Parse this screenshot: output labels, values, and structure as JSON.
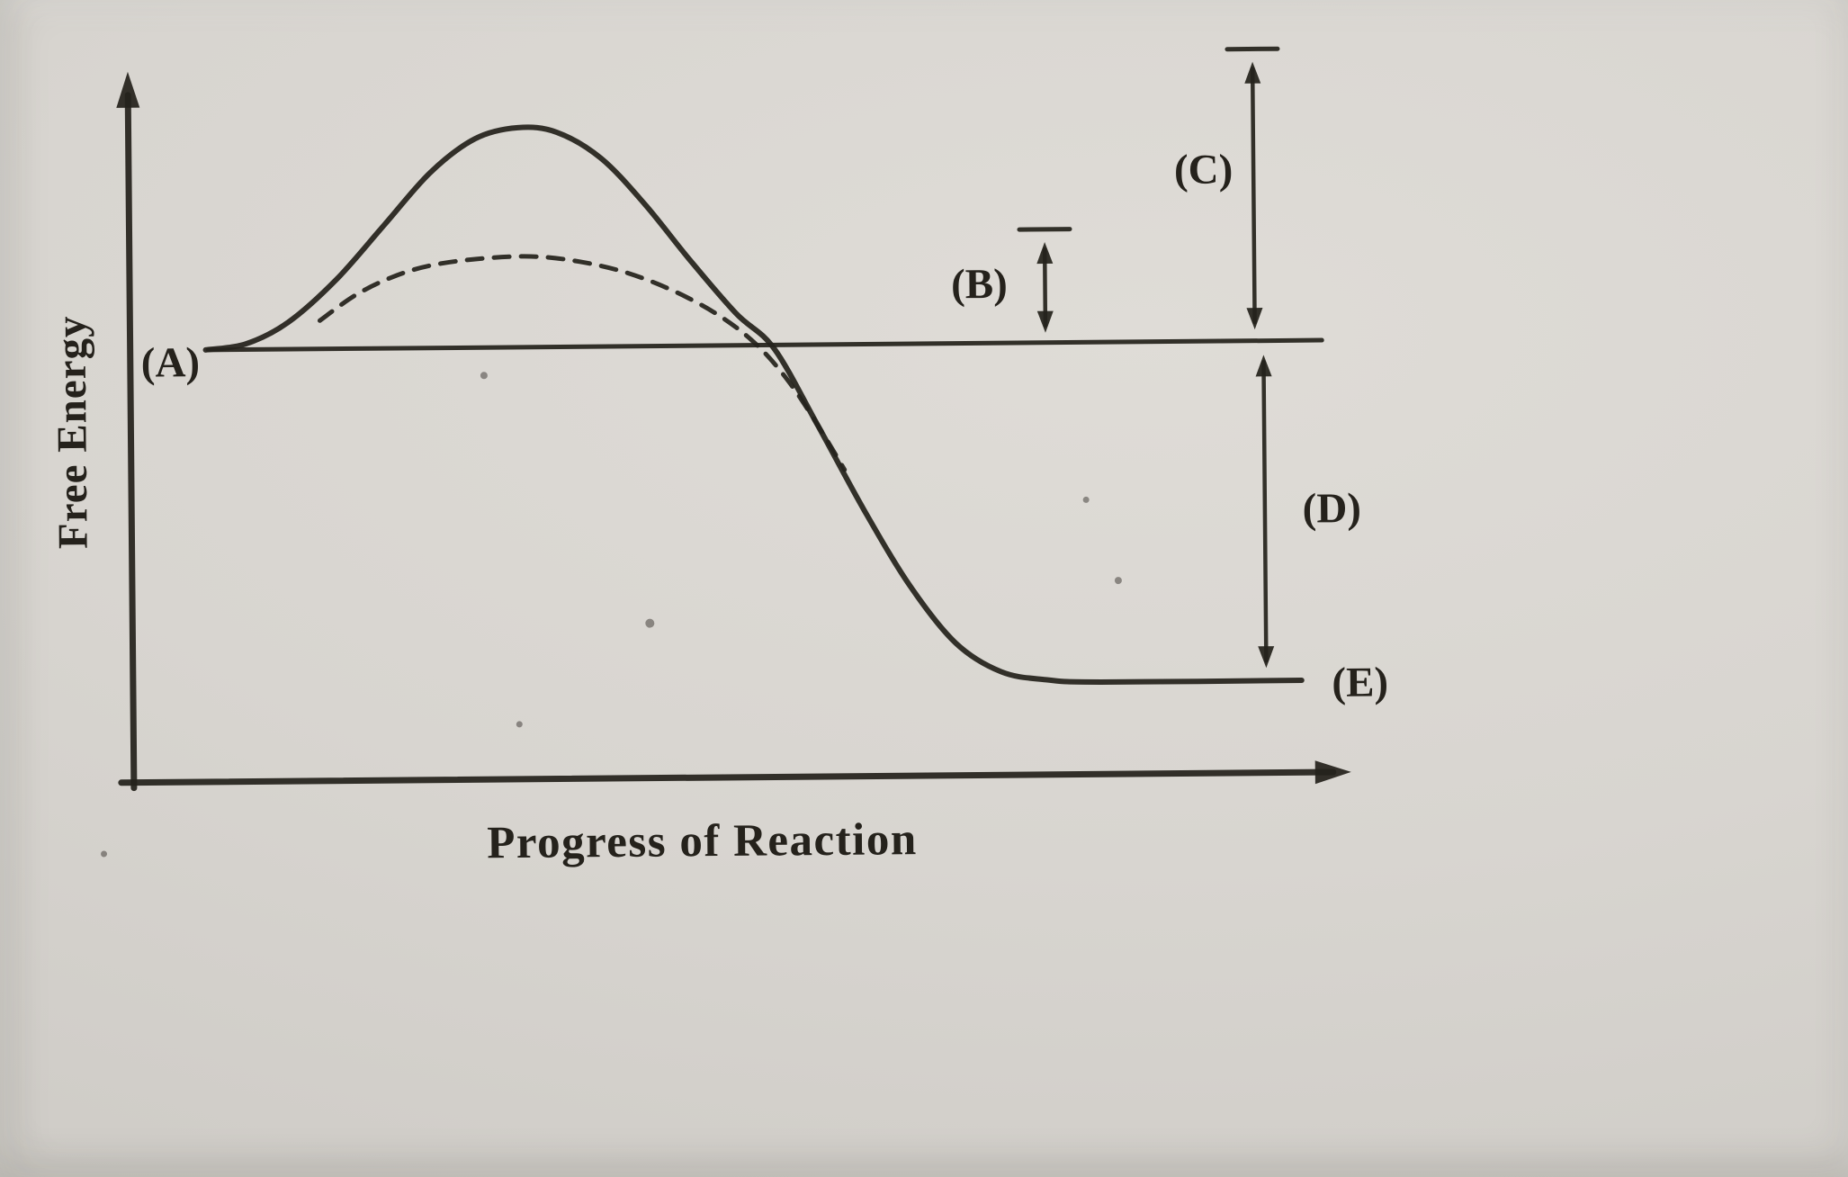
{
  "figure": {
    "paper_color": "#d8d5d0",
    "ink_color": "#25221c"
  },
  "chart_data": {
    "type": "line",
    "title": "",
    "xlabel": "Progress of Reaction",
    "ylabel": "Free Energy",
    "x_range": [
      0,
      100
    ],
    "y_range": [
      0,
      10
    ],
    "grid": false,
    "axis_tick_labels": "none",
    "legend": "none",
    "series": [
      {
        "name": "uncatalyzed-pathway",
        "style": "solid",
        "points": [
          [
            6.2,
            6.1
          ],
          [
            9.5,
            6.18
          ],
          [
            13,
            6.48
          ],
          [
            17,
            7.08
          ],
          [
            21,
            7.85
          ],
          [
            24.8,
            8.58
          ],
          [
            28.5,
            9.05
          ],
          [
            32,
            9.2
          ],
          [
            35.2,
            9.13
          ],
          [
            38.8,
            8.76
          ],
          [
            42.4,
            8.1
          ],
          [
            46,
            7.32
          ],
          [
            49.8,
            6.55
          ],
          [
            52.9,
            6.05
          ],
          [
            56.4,
            4.97
          ],
          [
            60.2,
            3.75
          ],
          [
            63.9,
            2.68
          ],
          [
            67.6,
            1.87
          ],
          [
            71.3,
            1.46
          ],
          [
            75,
            1.34
          ],
          [
            79.5,
            1.3
          ],
          [
            96,
            1.3
          ]
        ]
      },
      {
        "name": "catalyzed-pathway",
        "style": "dashed",
        "points": [
          [
            15.6,
            6.5
          ],
          [
            18.5,
            6.85
          ],
          [
            21.5,
            7.1
          ],
          [
            24.6,
            7.26
          ],
          [
            28.5,
            7.35
          ],
          [
            33,
            7.38
          ],
          [
            37,
            7.3
          ],
          [
            41,
            7.13
          ],
          [
            45,
            6.85
          ],
          [
            48.6,
            6.5
          ],
          [
            51.5,
            6.1
          ],
          [
            54,
            5.6
          ],
          [
            56.3,
            5.0
          ],
          [
            58.6,
            4.33
          ]
        ]
      },
      {
        "name": "reactant-energy-level",
        "style": "solid",
        "points": [
          [
            6.4,
            6.1
          ],
          [
            97.9,
            6.1
          ]
        ]
      }
    ],
    "labels": [
      {
        "id": "A",
        "text": "(A)",
        "x": 3.3,
        "y": 5.92
      },
      {
        "id": "B",
        "text": "(B)",
        "x": 69.8,
        "y": 6.93
      },
      {
        "id": "C",
        "text": "(C)",
        "x": 88.3,
        "y": 8.52
      },
      {
        "id": "D",
        "text": "(D)",
        "x": 98.6,
        "y": 3.72
      },
      {
        "id": "E",
        "text": "(E)",
        "x": 100.8,
        "y": 1.26
      }
    ],
    "measure_arrows": [
      {
        "id": "C",
        "x": 92.4,
        "from": 10.04,
        "to": 6.26,
        "tick_at": 10.22
      },
      {
        "id": "B",
        "x": 75.2,
        "from": 7.52,
        "to": 6.24,
        "tick_at": 7.7
      },
      {
        "id": "D",
        "x": 93.1,
        "from": 5.9,
        "to": 1.48
      }
    ]
  }
}
